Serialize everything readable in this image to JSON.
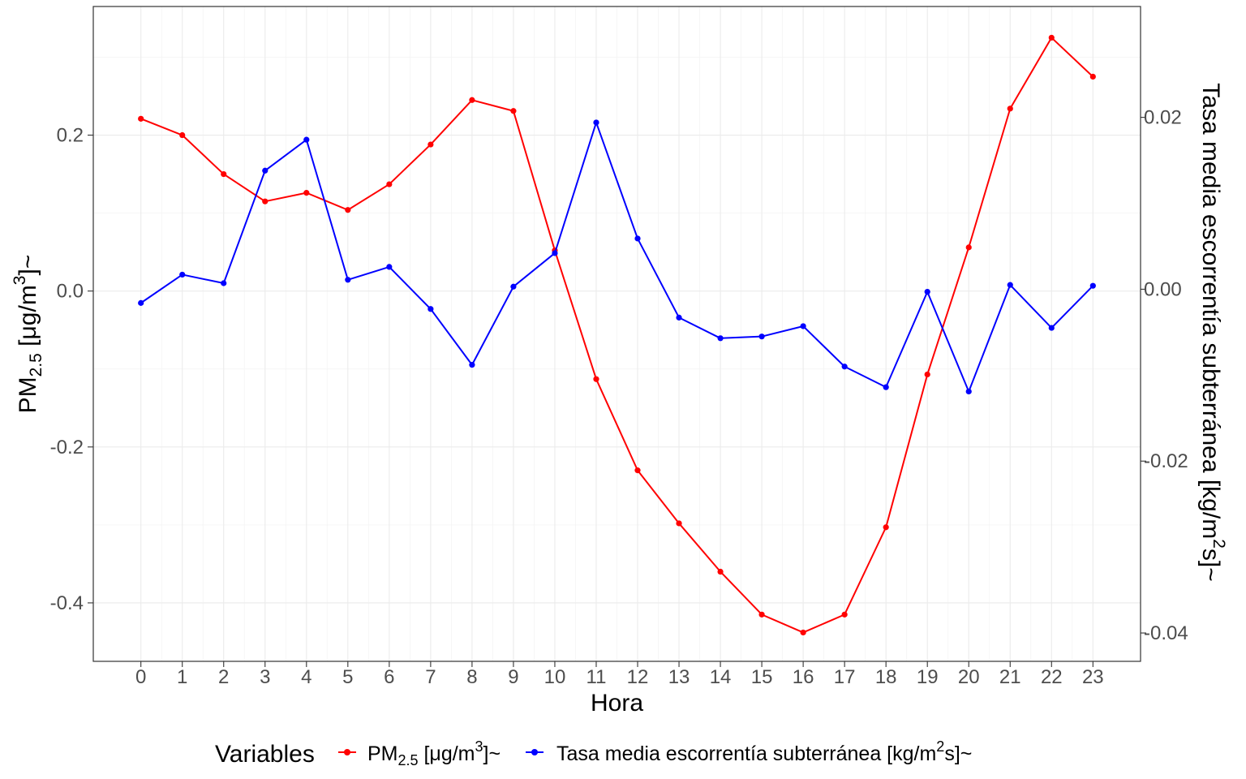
{
  "chart_data": {
    "type": "line",
    "xlabel": "Hora",
    "ylabel_left": {
      "main": "PM",
      "sub": "2.5",
      "rest": " [μg/m",
      "sup": "3",
      "end": "]~"
    },
    "ylabel_right": {
      "main": "Tasa media escorrentía subterránea [kg/m",
      "sup": "2",
      "end": "s]~"
    },
    "categories": [
      "0",
      "1",
      "2",
      "3",
      "4",
      "5",
      "6",
      "7",
      "8",
      "9",
      "10",
      "11",
      "12",
      "13",
      "14",
      "15",
      "16",
      "17",
      "18",
      "19",
      "20",
      "21",
      "22",
      "23"
    ],
    "x": [
      0,
      1,
      2,
      3,
      4,
      5,
      6,
      7,
      8,
      9,
      10,
      11,
      12,
      13,
      14,
      15,
      16,
      17,
      18,
      19,
      20,
      21,
      22,
      23
    ],
    "xlim": [
      -1.15,
      24.15
    ],
    "ylim_left": [
      -0.475,
      0.365
    ],
    "ylim_right": [
      -0.0433,
      0.0329
    ],
    "yticks_left": [
      0.2,
      0.0,
      -0.2,
      -0.4
    ],
    "yticks_left_labels": [
      "0.2",
      "0.0",
      "-0.2",
      "-0.4"
    ],
    "yticks_right": [
      0.02,
      0.0,
      -0.02,
      -0.04
    ],
    "yticks_right_labels": [
      "0.02",
      "0.00",
      "-0.02",
      "-0.04"
    ],
    "grid": true,
    "legend_position": "bottom",
    "legend_title": "Variables",
    "series": [
      {
        "name": "PM2.5 [μg/m3]~",
        "legend": {
          "main": "PM",
          "sub": "2.5",
          "rest": " [μg/m",
          "sup": "3",
          "end": "]~"
        },
        "axis": "left",
        "color": "#ff0000",
        "values": [
          0.221,
          0.2,
          0.15,
          0.115,
          0.126,
          0.104,
          0.137,
          0.188,
          0.245,
          0.231,
          0.052,
          -0.113,
          -0.23,
          -0.298,
          -0.36,
          -0.415,
          -0.438,
          -0.415,
          -0.303,
          -0.107,
          0.056,
          0.234,
          0.325,
          0.275
        ]
      },
      {
        "name": "Tasa media escorrentía subterránea [kg/m2s]~",
        "legend": {
          "main": "Tasa media escorrentía subterránea  [kg/m",
          "sup": "2",
          "end": "s]~"
        },
        "axis": "right",
        "color": "#0000ff",
        "values": [
          -0.0016,
          0.0017,
          0.0007,
          0.0138,
          0.0174,
          0.0011,
          0.0026,
          -0.0023,
          -0.0088,
          0.0003,
          0.0042,
          0.0194,
          0.0059,
          -0.0033,
          -0.0057,
          -0.0055,
          -0.0043,
          -0.009,
          -0.0114,
          -0.0003,
          -0.0119,
          0.0005,
          -0.0045,
          0.0004
        ]
      }
    ]
  }
}
